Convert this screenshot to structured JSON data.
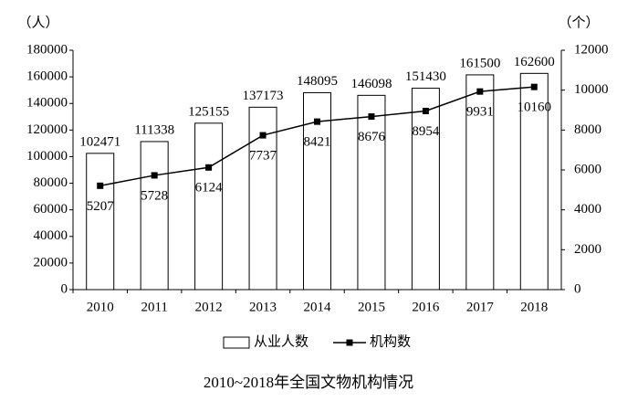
{
  "chart_data": {
    "type": "bar",
    "title": "2010~2018年全国文物机构情况",
    "y_label": "（人）",
    "y2_label": "（个）",
    "categories": [
      "2010",
      "2011",
      "2012",
      "2013",
      "2014",
      "2015",
      "2016",
      "2017",
      "2018"
    ],
    "series": [
      {
        "name": "从业人数",
        "type": "bar",
        "color": "#ffffff",
        "values": [
          102471,
          111338,
          125155,
          137173,
          148095,
          146098,
          151430,
          161500,
          162600
        ]
      },
      {
        "name": "机构数",
        "type": "line",
        "axis": "y2",
        "color": "#000000",
        "values": [
          5207,
          5728,
          6124,
          7737,
          8421,
          8676,
          8954,
          9931,
          10160
        ]
      }
    ],
    "ylim": [
      0,
      180000
    ],
    "yticks": [
      0,
      20000,
      40000,
      60000,
      80000,
      100000,
      120000,
      140000,
      160000,
      180000
    ],
    "y2lim": [
      0,
      12000
    ],
    "y2ticks": [
      0,
      2000,
      4000,
      6000,
      8000,
      10000,
      12000
    ],
    "legend": "bottom"
  }
}
